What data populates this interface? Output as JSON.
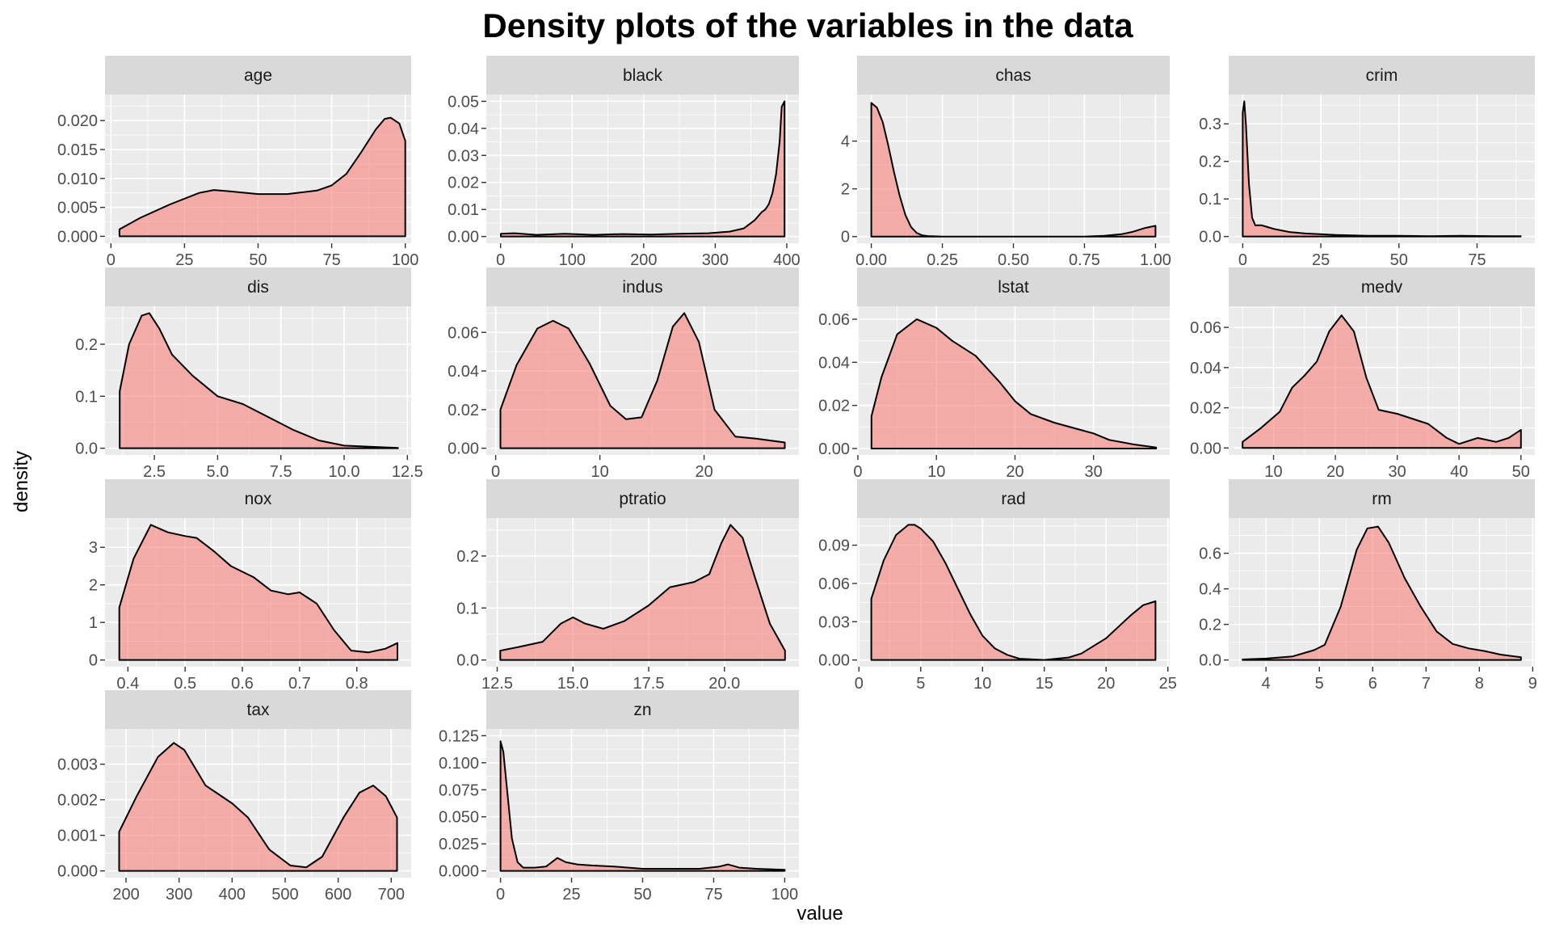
{
  "chart_data": {
    "type": "area",
    "title": "Density plots of the variables in the data",
    "xlabel": "value",
    "ylabel": "density",
    "fill_color": "#F8766D",
    "fill_opacity": 0.55,
    "panels": [
      {
        "name": "age",
        "xlim": [
          -2,
          102
        ],
        "ylim": [
          -0.0012,
          0.0245
        ],
        "xticks": [
          0,
          25,
          50,
          75,
          100
        ],
        "xtick_labels": [
          "0",
          "25",
          "50",
          "75",
          "100"
        ],
        "yticks": [
          0,
          0.005,
          0.01,
          0.015,
          0.02
        ],
        "ytick_labels": [
          "0.000",
          "0.005",
          "0.010",
          "0.015",
          "0.020"
        ],
        "x": [
          2.9,
          10,
          20,
          30,
          35,
          40,
          50,
          60,
          70,
          75,
          80,
          85,
          90,
          93,
          95,
          98,
          100
        ],
        "y": [
          0.0012,
          0.0032,
          0.0055,
          0.0075,
          0.008,
          0.0078,
          0.0073,
          0.0073,
          0.0079,
          0.0088,
          0.0108,
          0.0145,
          0.0185,
          0.0203,
          0.0205,
          0.0195,
          0.0165
        ]
      },
      {
        "name": "black",
        "xlim": [
          -20,
          417
        ],
        "ylim": [
          -0.0025,
          0.0525
        ],
        "xticks": [
          0,
          100,
          200,
          300,
          400
        ],
        "xtick_labels": [
          "0",
          "100",
          "200",
          "300",
          "400"
        ],
        "yticks": [
          0,
          0.01,
          0.02,
          0.03,
          0.04,
          0.05
        ],
        "ytick_labels": [
          "0.00",
          "0.01",
          "0.02",
          "0.03",
          "0.04",
          "0.05"
        ],
        "x": [
          0.3,
          20,
          50,
          90,
          130,
          170,
          210,
          250,
          290,
          320,
          340,
          355,
          365,
          370,
          375,
          380,
          385,
          390,
          393,
          396.9
        ],
        "y": [
          0.001,
          0.0012,
          0.0006,
          0.001,
          0.0006,
          0.0009,
          0.0007,
          0.001,
          0.0012,
          0.0018,
          0.003,
          0.006,
          0.009,
          0.01,
          0.012,
          0.016,
          0.023,
          0.035,
          0.048,
          0.05
        ]
      },
      {
        "name": "chas",
        "xlim": [
          -0.05,
          1.05
        ],
        "ylim": [
          -0.28,
          5.95
        ],
        "xticks": [
          0,
          0.25,
          0.5,
          0.75,
          1
        ],
        "xtick_labels": [
          "0.00",
          "0.25",
          "0.50",
          "0.75",
          "1.00"
        ],
        "yticks": [
          0,
          2,
          4
        ],
        "ytick_labels": [
          "0",
          "2",
          "4"
        ],
        "x": [
          0,
          0.02,
          0.04,
          0.06,
          0.08,
          0.1,
          0.12,
          0.14,
          0.16,
          0.18,
          0.2,
          0.25,
          0.5,
          0.75,
          0.82,
          0.88,
          0.92,
          0.96,
          1.0
        ],
        "y": [
          5.6,
          5.4,
          4.8,
          3.8,
          2.7,
          1.7,
          0.9,
          0.4,
          0.15,
          0.05,
          0.02,
          0,
          0,
          0,
          0.03,
          0.1,
          0.2,
          0.35,
          0.45
        ]
      },
      {
        "name": "crim",
        "xlim": [
          -4.5,
          93.5
        ],
        "ylim": [
          -0.018,
          0.378
        ],
        "xticks": [
          0,
          25,
          50,
          75
        ],
        "xtick_labels": [
          "0",
          "25",
          "50",
          "75"
        ],
        "yticks": [
          0,
          0.1,
          0.2,
          0.3
        ],
        "ytick_labels": [
          "0.0",
          "0.1",
          "0.2",
          "0.3"
        ],
        "x": [
          0.006,
          0.5,
          1,
          2,
          3,
          4,
          6,
          8,
          10,
          15,
          20,
          30,
          40,
          50,
          60,
          70,
          80,
          89
        ],
        "y": [
          0.33,
          0.36,
          0.3,
          0.14,
          0.05,
          0.03,
          0.03,
          0.025,
          0.02,
          0.012,
          0.008,
          0.004,
          0.002,
          0.002,
          0.001,
          0.002,
          0.001,
          0.001
        ]
      },
      {
        "name": "dis",
        "xlim": [
          0.55,
          12.65
        ],
        "ylim": [
          -0.013,
          0.273
        ],
        "xticks": [
          2.5,
          5,
          7.5,
          10,
          12.5
        ],
        "xtick_labels": [
          "2.5",
          "5.0",
          "7.5",
          "10.0",
          "12.5"
        ],
        "yticks": [
          0,
          0.1,
          0.2
        ],
        "ytick_labels": [
          "0.0",
          "0.1",
          "0.2"
        ],
        "x": [
          1.13,
          1.5,
          2.0,
          2.3,
          2.7,
          3.2,
          4.0,
          5.0,
          6.0,
          7.0,
          8.0,
          9.0,
          10.0,
          11.0,
          12.13
        ],
        "y": [
          0.11,
          0.2,
          0.255,
          0.26,
          0.23,
          0.18,
          0.14,
          0.1,
          0.085,
          0.06,
          0.035,
          0.015,
          0.005,
          0.003,
          0.0005
        ]
      },
      {
        "name": "indus",
        "xlim": [
          -0.9,
          29.1
        ],
        "ylim": [
          -0.0035,
          0.0735
        ],
        "xticks": [
          0,
          10,
          20
        ],
        "xtick_labels": [
          "0",
          "10",
          "20"
        ],
        "yticks": [
          0,
          0.02,
          0.04,
          0.06
        ],
        "ytick_labels": [
          "0.00",
          "0.02",
          "0.04",
          "0.06"
        ],
        "x": [
          0.46,
          2,
          4,
          5.5,
          7,
          9,
          11,
          12.5,
          14,
          15.5,
          17,
          18.1,
          19.5,
          21,
          23,
          25,
          27.74
        ],
        "y": [
          0.02,
          0.043,
          0.062,
          0.066,
          0.062,
          0.044,
          0.022,
          0.015,
          0.016,
          0.035,
          0.063,
          0.07,
          0.055,
          0.02,
          0.006,
          0.005,
          0.003
        ]
      },
      {
        "name": "lstat",
        "xlim": [
          -0.1,
          39.7
        ],
        "ylim": [
          -0.003,
          0.066
        ],
        "xticks": [
          0,
          10,
          20,
          30
        ],
        "xtick_labels": [
          "0",
          "10",
          "20",
          "30"
        ],
        "yticks": [
          0,
          0.02,
          0.04,
          0.06
        ],
        "ytick_labels": [
          "0.00",
          "0.02",
          "0.04",
          "0.06"
        ],
        "x": [
          1.73,
          3,
          5,
          7.5,
          10,
          12,
          15,
          18,
          20,
          22,
          25,
          28,
          30,
          32,
          35,
          37.97
        ],
        "y": [
          0.015,
          0.033,
          0.053,
          0.06,
          0.056,
          0.05,
          0.043,
          0.031,
          0.022,
          0.016,
          0.012,
          0.009,
          0.007,
          0.004,
          0.002,
          0.0005
        ]
      },
      {
        "name": "medv",
        "xlim": [
          2.75,
          52.25
        ],
        "ylim": [
          -0.0035,
          0.0705
        ],
        "xticks": [
          10,
          20,
          30,
          40,
          50
        ],
        "xtick_labels": [
          "10",
          "20",
          "30",
          "40",
          "50"
        ],
        "yticks": [
          0,
          0.02,
          0.04,
          0.06
        ],
        "ytick_labels": [
          "0.00",
          "0.02",
          "0.04",
          "0.06"
        ],
        "x": [
          5,
          8,
          11,
          13,
          15,
          17,
          19,
          21,
          23,
          25,
          27,
          30,
          35,
          38,
          40,
          43,
          46,
          48,
          50
        ],
        "y": [
          0.003,
          0.01,
          0.018,
          0.03,
          0.036,
          0.043,
          0.058,
          0.066,
          0.058,
          0.035,
          0.019,
          0.017,
          0.012,
          0.005,
          0.002,
          0.005,
          0.003,
          0.005,
          0.009
        ]
      },
      {
        "name": "nox",
        "xlim": [
          0.36,
          0.895
        ],
        "ylim": [
          -0.18,
          3.78
        ],
        "xticks": [
          0.4,
          0.5,
          0.6,
          0.7,
          0.8
        ],
        "xtick_labels": [
          "0.4",
          "0.5",
          "0.6",
          "0.7",
          "0.8"
        ],
        "yticks": [
          0,
          1,
          2,
          3
        ],
        "ytick_labels": [
          "0",
          "1",
          "2",
          "3"
        ],
        "x": [
          0.385,
          0.41,
          0.44,
          0.47,
          0.5,
          0.52,
          0.55,
          0.58,
          0.62,
          0.65,
          0.68,
          0.7,
          0.73,
          0.76,
          0.79,
          0.82,
          0.85,
          0.871
        ],
        "y": [
          1.4,
          2.7,
          3.6,
          3.4,
          3.3,
          3.25,
          2.9,
          2.5,
          2.2,
          1.85,
          1.75,
          1.8,
          1.5,
          0.8,
          0.25,
          0.2,
          0.3,
          0.45
        ]
      },
      {
        "name": "ptratio",
        "xlim": [
          12.14,
          22.46
        ],
        "ylim": [
          -0.013,
          0.273
        ],
        "xticks": [
          12.5,
          15,
          17.5,
          20
        ],
        "xtick_labels": [
          "12.5",
          "15.0",
          "17.5",
          "20.0"
        ],
        "yticks": [
          0,
          0.1,
          0.2
        ],
        "ytick_labels": [
          "0.0",
          "0.1",
          "0.2"
        ],
        "x": [
          12.6,
          13.2,
          14,
          14.6,
          15,
          15.4,
          16,
          16.7,
          17.5,
          18.2,
          19,
          19.5,
          19.9,
          20.2,
          20.6,
          21,
          21.5,
          22
        ],
        "y": [
          0.018,
          0.025,
          0.035,
          0.07,
          0.082,
          0.07,
          0.06,
          0.075,
          0.105,
          0.14,
          0.15,
          0.165,
          0.225,
          0.26,
          0.235,
          0.16,
          0.07,
          0.018
        ]
      },
      {
        "name": "rad",
        "xlim": [
          -0.15,
          25.15
        ],
        "ylim": [
          -0.0053,
          0.1113
        ],
        "xticks": [
          0,
          5,
          10,
          15,
          20,
          25
        ],
        "xtick_labels": [
          "0",
          "5",
          "10",
          "15",
          "20",
          "25"
        ],
        "yticks": [
          0,
          0.03,
          0.06,
          0.09
        ],
        "ytick_labels": [
          "0.00",
          "0.03",
          "0.06",
          "0.09"
        ],
        "x": [
          1,
          2,
          3,
          4,
          4.5,
          5,
          6,
          7,
          8,
          9,
          10,
          11,
          12,
          13,
          15,
          17,
          18,
          20,
          22,
          23,
          24
        ],
        "y": [
          0.048,
          0.078,
          0.098,
          0.106,
          0.106,
          0.103,
          0.093,
          0.076,
          0.056,
          0.036,
          0.019,
          0.009,
          0.004,
          0.001,
          0,
          0.002,
          0.005,
          0.017,
          0.035,
          0.043,
          0.046
        ]
      },
      {
        "name": "rm",
        "xlim": [
          3.3,
          9.04
        ],
        "ylim": [
          -0.038,
          0.798
        ],
        "xticks": [
          4,
          5,
          6,
          7,
          8,
          9
        ],
        "xtick_labels": [
          "4",
          "5",
          "6",
          "7",
          "8",
          "9"
        ],
        "yticks": [
          0,
          0.2,
          0.4,
          0.6
        ],
        "ytick_labels": [
          "0.0",
          "0.2",
          "0.4",
          "0.6"
        ],
        "x": [
          3.56,
          4,
          4.5,
          4.9,
          5.1,
          5.4,
          5.7,
          5.9,
          6.1,
          6.3,
          6.6,
          6.9,
          7.2,
          7.5,
          7.8,
          8.1,
          8.4,
          8.78
        ],
        "y": [
          0.003,
          0.008,
          0.02,
          0.055,
          0.085,
          0.3,
          0.62,
          0.74,
          0.75,
          0.66,
          0.46,
          0.3,
          0.16,
          0.09,
          0.065,
          0.05,
          0.03,
          0.015
        ]
      },
      {
        "name": "tax",
        "xlim": [
          160.35,
          737.65
        ],
        "ylim": [
          -0.00019,
          0.00399
        ],
        "xticks": [
          200,
          300,
          400,
          500,
          600,
          700
        ],
        "xtick_labels": [
          "200",
          "300",
          "400",
          "500",
          "600",
          "700"
        ],
        "yticks": [
          0,
          0.001,
          0.002,
          0.003
        ],
        "ytick_labels": [
          "0.000",
          "0.001",
          "0.002",
          "0.003"
        ],
        "x": [
          187,
          220,
          260,
          290,
          310,
          350,
          400,
          430,
          470,
          510,
          540,
          570,
          610,
          640,
          666,
          690,
          711
        ],
        "y": [
          0.0011,
          0.0021,
          0.0032,
          0.0036,
          0.0034,
          0.0024,
          0.0019,
          0.0015,
          0.0006,
          0.00015,
          0.0001,
          0.0004,
          0.0015,
          0.0022,
          0.0024,
          0.0021,
          0.0015
        ]
      },
      {
        "name": "zn",
        "xlim": [
          -5,
          105
        ],
        "ylim": [
          -0.00625,
          0.13125
        ],
        "xticks": [
          0,
          25,
          50,
          75,
          100
        ],
        "xtick_labels": [
          "0",
          "25",
          "50",
          "75",
          "100"
        ],
        "yticks": [
          0,
          0.025,
          0.05,
          0.075,
          0.1,
          0.125
        ],
        "ytick_labels": [
          "0.000",
          "0.025",
          "0.050",
          "0.075",
          "0.100",
          "0.125"
        ],
        "x": [
          0,
          1,
          2.5,
          4,
          6,
          8,
          12,
          16,
          20,
          23,
          27,
          32,
          40,
          50,
          60,
          70,
          77,
          80,
          84,
          90,
          100
        ],
        "y": [
          0.12,
          0.11,
          0.07,
          0.03,
          0.008,
          0.003,
          0.003,
          0.004,
          0.012,
          0.008,
          0.006,
          0.005,
          0.004,
          0.002,
          0.002,
          0.002,
          0.004,
          0.006,
          0.003,
          0.002,
          0.001
        ]
      }
    ]
  }
}
